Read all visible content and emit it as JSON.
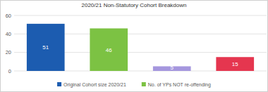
{
  "chart_data": {
    "type": "bar",
    "title": "2020/21 Non-Statutory Cohort Breakdown",
    "categories": [
      null
    ],
    "series": [
      {
        "name": "Original Cohort size 2020/21",
        "color": "#1c5cb0",
        "values": [
          51
        ]
      },
      {
        "name": "No. of YPs NOT re-offending",
        "color": "#7cc243",
        "values": [
          46
        ]
      },
      {
        "color": "#a597de",
        "values": [
          5
        ]
      },
      {
        "color": "#e5364f",
        "values": [
          15
        ]
      }
    ],
    "ylim": [
      0,
      60
    ],
    "yticks": [
      0,
      20,
      40,
      60
    ],
    "grid": true,
    "data_labels": true,
    "legend": "bottom"
  }
}
